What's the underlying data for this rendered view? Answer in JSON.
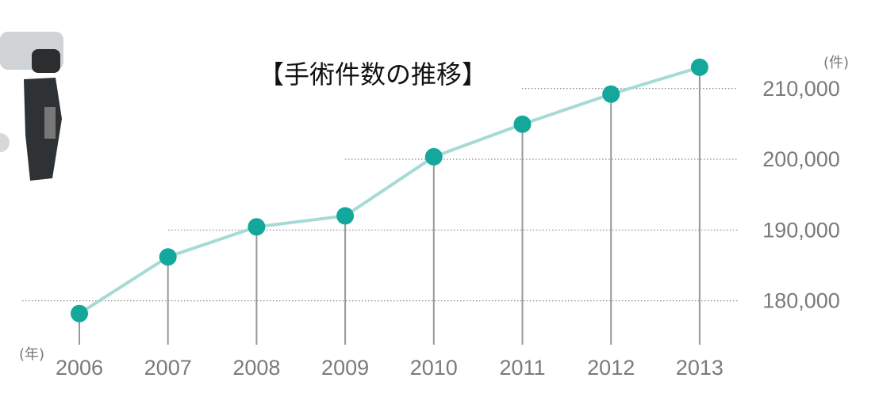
{
  "chart_data": {
    "type": "line",
    "title": "【手術件数の推移】",
    "y_unit": "(件)",
    "x_unit": "(年)",
    "categories": [
      "2006",
      "2007",
      "2008",
      "2009",
      "2010",
      "2011",
      "2012",
      "2013"
    ],
    "values": [
      178200,
      186200,
      190450,
      192000,
      200350,
      204950,
      209200,
      213000
    ],
    "line_color": "#a6dbd5",
    "marker_color": "#13a89b",
    "ylim": [
      173800,
      222500
    ],
    "yticks": [
      {
        "value": 180000,
        "label": "180,000"
      },
      {
        "value": 190000,
        "label": "190,000"
      },
      {
        "value": 200000,
        "label": "200,000"
      },
      {
        "value": 210000,
        "label": "210,000"
      }
    ],
    "grid": true
  }
}
